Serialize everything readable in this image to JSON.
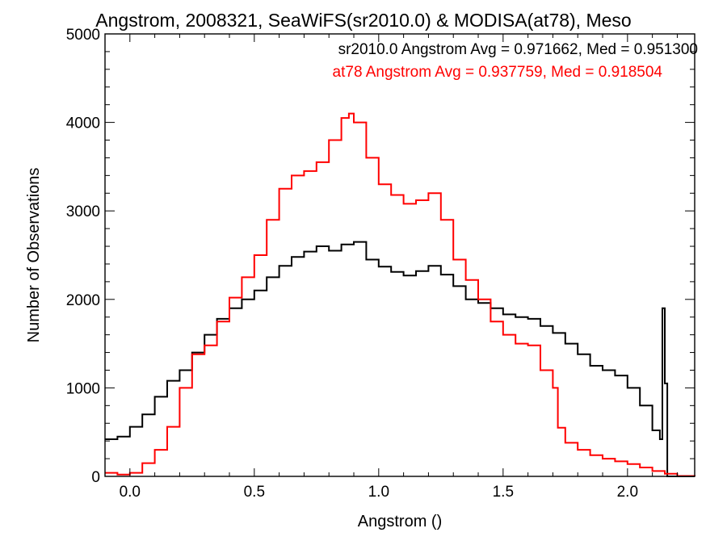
{
  "chart_data": {
    "type": "line",
    "title": "Angstrom, 2008321, SeaWiFS(sr2010.0) & MODISA(at78), Meso",
    "xlabel": "Angstrom ()",
    "ylabel": "Number of Observations",
    "xlim": [
      -0.1,
      2.27
    ],
    "ylim": [
      0,
      5000
    ],
    "xticks": [
      0.0,
      0.5,
      1.0,
      1.5,
      2.0
    ],
    "xtick_labels": [
      "0.0",
      "0.5",
      "1.0",
      "1.5",
      "2.0"
    ],
    "yticks": [
      0,
      1000,
      2000,
      3000,
      4000,
      5000
    ],
    "ytick_labels": [
      "0",
      "1000",
      "2000",
      "3000",
      "4000",
      "5000"
    ],
    "grid": false,
    "legend": [
      {
        "text": "sr2010.0 Angstrom Avg = 0.971662, Med = 0.951300",
        "color": "#000000"
      },
      {
        "text": "at78 Angstrom Avg = 0.937759, Med = 0.918504",
        "color": "#ff0000"
      }
    ],
    "legend_position": "top-right",
    "series": [
      {
        "color": "#000000",
        "x": [
          -0.1,
          -0.05,
          0.0,
          0.05,
          0.1,
          0.15,
          0.2,
          0.25,
          0.3,
          0.35,
          0.4,
          0.45,
          0.5,
          0.55,
          0.6,
          0.65,
          0.7,
          0.75,
          0.8,
          0.85,
          0.9,
          0.95,
          1.0,
          1.05,
          1.1,
          1.15,
          1.2,
          1.25,
          1.3,
          1.35,
          1.4,
          1.45,
          1.5,
          1.55,
          1.6,
          1.65,
          1.7,
          1.75,
          1.8,
          1.85,
          1.9,
          1.95,
          2.0,
          2.05,
          2.1,
          2.13,
          2.14,
          2.15,
          2.16,
          2.27
        ],
        "values": [
          420,
          450,
          560,
          700,
          900,
          1080,
          1200,
          1400,
          1600,
          1780,
          1900,
          2000,
          2100,
          2250,
          2380,
          2480,
          2540,
          2600,
          2550,
          2620,
          2650,
          2450,
          2370,
          2310,
          2270,
          2320,
          2380,
          2280,
          2150,
          2000,
          1960,
          1900,
          1830,
          1800,
          1780,
          1700,
          1620,
          1500,
          1380,
          1250,
          1200,
          1140,
          1000,
          800,
          520,
          420,
          1900,
          1050,
          0,
          0
        ]
      },
      {
        "color": "#ff0000",
        "x": [
          -0.1,
          -0.05,
          0.0,
          0.05,
          0.1,
          0.15,
          0.2,
          0.25,
          0.3,
          0.35,
          0.4,
          0.45,
          0.5,
          0.55,
          0.6,
          0.65,
          0.7,
          0.75,
          0.8,
          0.85,
          0.88,
          0.9,
          0.95,
          1.0,
          1.05,
          1.1,
          1.15,
          1.2,
          1.25,
          1.3,
          1.35,
          1.4,
          1.45,
          1.5,
          1.55,
          1.6,
          1.65,
          1.7,
          1.72,
          1.75,
          1.8,
          1.85,
          1.9,
          1.95,
          2.0,
          2.05,
          2.1,
          2.15,
          2.2,
          2.27
        ],
        "values": [
          40,
          20,
          40,
          150,
          300,
          560,
          1000,
          1380,
          1480,
          1750,
          2020,
          2250,
          2500,
          2900,
          3250,
          3400,
          3450,
          3550,
          3800,
          4050,
          4100,
          4000,
          3600,
          3300,
          3180,
          3080,
          3120,
          3200,
          2900,
          2450,
          2220,
          2000,
          1750,
          1600,
          1500,
          1480,
          1200,
          1000,
          550,
          380,
          300,
          240,
          200,
          170,
          140,
          100,
          60,
          30,
          5,
          0
        ]
      }
    ]
  }
}
